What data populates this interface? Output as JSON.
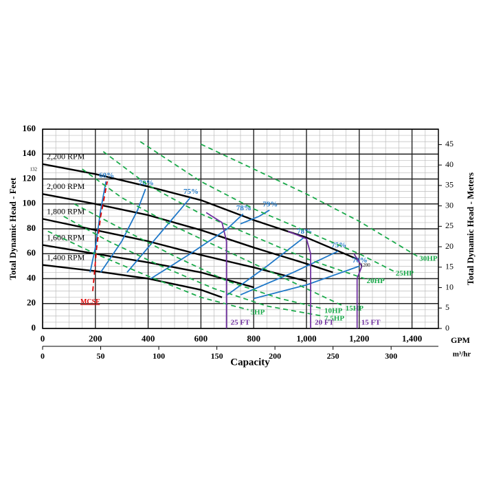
{
  "chart_data": {
    "type": "line",
    "y_label": "Total Dynamic Head - Feet",
    "y2_label": "Total Dynamic Head - Meters",
    "x_label": "Capacity",
    "x_unit": "GPM",
    "x2_unit": "m³/hr",
    "xlim": [
      0,
      1500
    ],
    "ylim": [
      0,
      160
    ],
    "y2lim": [
      0,
      48.77
    ],
    "x2lim": [
      0,
      340.7
    ],
    "xticks": [
      0,
      200,
      400,
      600,
      800,
      {
        "value": 1000,
        "label": "1,000"
      },
      {
        "value": 1200,
        "label": "1,200"
      },
      {
        "value": 1400,
        "label": "1,400"
      }
    ],
    "yticks": [
      0,
      20,
      40,
      60,
      80,
      100,
      120,
      140,
      160
    ],
    "y2ticks": [
      0,
      5,
      10,
      15,
      20,
      25,
      30,
      35,
      40,
      45
    ],
    "x2ticks": [
      0,
      50,
      100,
      150,
      200,
      250,
      300
    ],
    "grid": true,
    "minor_grid": true,
    "series": [
      {
        "name": "2,200 RPM",
        "color": "#000000",
        "x": [
          0,
          200,
          400,
          600,
          800,
          1000,
          1200
        ],
        "y": [
          132,
          124,
          114,
          103,
          87,
          73,
          55
        ]
      },
      {
        "name": "2,000 RPM",
        "color": "#000000",
        "x": [
          0,
          200,
          400,
          600,
          800,
          1000,
          1100
        ],
        "y": [
          108,
          100,
          91,
          79,
          65,
          52,
          45
        ]
      },
      {
        "name": "1,800 RPM",
        "color": "#000000",
        "x": [
          0,
          200,
          400,
          600,
          800,
          1000
        ],
        "y": [
          88,
          79,
          70,
          59,
          49,
          38
        ]
      },
      {
        "name": "1,600 RPM",
        "color": "#000000",
        "x": [
          0,
          200,
          400,
          600,
          800
        ],
        "y": [
          67,
          60,
          53,
          45,
          33
        ]
      },
      {
        "name": "1,400 RPM",
        "color": "#000000",
        "x": [
          0,
          200,
          400,
          600,
          680
        ],
        "y": [
          51,
          46,
          40,
          31,
          25
        ]
      },
      {
        "name": "60%",
        "color": "#1f78c8",
        "x": [
          180,
          200,
          220,
          240
        ],
        "y": [
          45,
          65,
          95,
          118
        ]
      },
      {
        "name": "70%",
        "color": "#1f78c8",
        "x": [
          220,
          300,
          360,
          390
        ],
        "y": [
          45,
          70,
          95,
          112
        ]
      },
      {
        "name": "75%",
        "color": "#1f78c8",
        "x": [
          320,
          420,
          520,
          560
        ],
        "y": [
          45,
          70,
          95,
          105
        ]
      },
      {
        "name": "78%",
        "color": "#1f78c8",
        "x": [
          410,
          560,
          700,
          760
        ],
        "y": [
          40,
          60,
          80,
          92
        ]
      },
      {
        "name": "79%",
        "color": "#1f78c8",
        "x": [
          750,
          820,
          860
        ],
        "y": [
          84,
          90,
          95
        ]
      },
      {
        "name": "78%",
        "color": "#1f78c8",
        "x": [
          700,
          850,
          990
        ],
        "y": [
          27,
          50,
          73
        ]
      },
      {
        "name": "75%",
        "color": "#1f78c8",
        "x": [
          750,
          950,
          1120
        ],
        "y": [
          27,
          45,
          62
        ]
      },
      {
        "name": "70%",
        "color": "#1f78c8",
        "x": [
          800,
          1000,
          1200
        ],
        "y": [
          24,
          35,
          50
        ]
      },
      {
        "name": "30HP",
        "color": "#1aaa4a",
        "dash": true,
        "x": [
          600,
          800,
          1000,
          1200,
          1420
        ],
        "y": [
          148,
          128,
          108,
          86,
          58
        ]
      },
      {
        "name": "25HP",
        "color": "#1aaa4a",
        "dash": true,
        "x": [
          370,
          600,
          800,
          1000,
          1200,
          1330
        ],
        "y": [
          150,
          118,
          96,
          78,
          60,
          46
        ]
      },
      {
        "name": "20HP",
        "color": "#1aaa4a",
        "dash": true,
        "x": [
          230,
          400,
          600,
          800,
          1000,
          1220
        ],
        "y": [
          142,
          115,
          92,
          74,
          56,
          40
        ]
      },
      {
        "name": "15HP",
        "color": "#1aaa4a",
        "dash": true,
        "x": [
          150,
          300,
          500,
          700,
          900,
          1140
        ],
        "y": [
          128,
          105,
          82,
          62,
          42,
          18
        ]
      },
      {
        "name": "10HP",
        "color": "#1aaa4a",
        "dash": true,
        "x": [
          120,
          300,
          500,
          700,
          900,
          1060
        ],
        "y": [
          100,
          80,
          58,
          38,
          24,
          16
        ]
      },
      {
        "name": "7.5HP",
        "color": "#1aaa4a",
        "dash": true,
        "x": [
          80,
          250,
          450,
          650,
          850,
          1060
        ],
        "y": [
          90,
          70,
          50,
          32,
          18,
          10
        ]
      },
      {
        "name": "5HP",
        "color": "#1aaa4a",
        "dash": true,
        "x": [
          20,
          200,
          400,
          600,
          780
        ],
        "y": [
          78,
          60,
          42,
          25,
          15
        ]
      },
      {
        "name": "25 FT",
        "color": "#7030a0",
        "x": [
          620,
          680,
          697,
          697
        ],
        "y": [
          93,
          85,
          70,
          0
        ]
      },
      {
        "name": "20 FT",
        "color": "#7030a0",
        "x": [
          930,
          1000,
          1016,
          1016
        ],
        "y": [
          78,
          72,
          60,
          0
        ]
      },
      {
        "name": "15 FT",
        "color": "#7030a0",
        "x": [
          1180,
          1210,
          1192,
          1192
        ],
        "y": [
          60,
          50,
          40,
          0
        ]
      },
      {
        "name": "MCSF",
        "color": "#e00000",
        "dash": true,
        "x": [
          190,
          205,
          220,
          245
        ],
        "y": [
          30,
          65,
          90,
          118
        ]
      }
    ],
    "annotations": [
      {
        "text": "132",
        "x": 0,
        "y": 132
      },
      {
        "text": "1200",
        "x": 1200,
        "y": 55
      }
    ]
  }
}
